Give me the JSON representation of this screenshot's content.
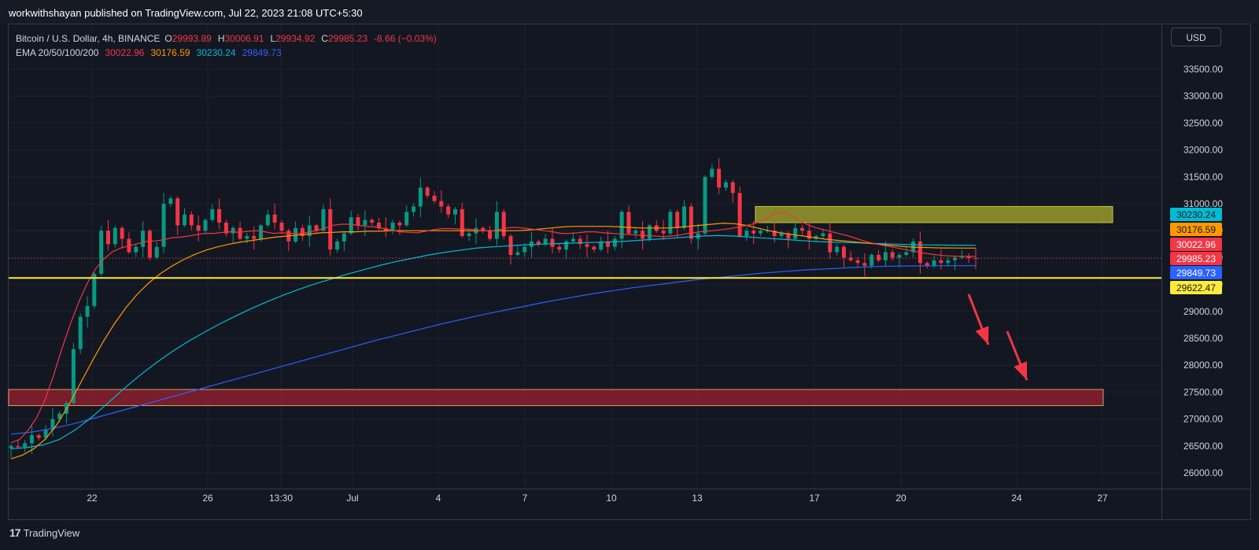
{
  "header": {
    "publisher_line": "workwithshayan published on TradingView.com, Jul 22, 2023 21:08 UTC+5:30"
  },
  "legend": {
    "symbol": "Bitcoin / U.S. Dollar, 4h, BINANCE",
    "o_label": "O",
    "o_value": "29993.89",
    "h_label": "H",
    "h_value": "30006.91",
    "l_label": "L",
    "l_value": "29934.92",
    "c_label": "C",
    "c_value": "29985.23",
    "change": "-8.66 (−0.03%)",
    "ema_label": "EMA 20/50/100/200",
    "ema20": "30022.96",
    "ema50": "30176.59",
    "ema100": "30230.24",
    "ema200": "29849.73"
  },
  "currency": "USD",
  "footer": {
    "logo_mark": "17",
    "logo_text": "TradingView"
  },
  "colors": {
    "background": "#131722",
    "grid": "#1e222d",
    "up": "#089981",
    "down": "#f23645",
    "ema20": "#f23645",
    "ema50": "#ff9800",
    "ema100": "#00bcd4",
    "ema200": "#2962ff",
    "support_line": "#ffeb3b",
    "resistance_zone": "#9a9a2a",
    "target_zone": "#8b1f2e",
    "arrow": "#f23645"
  },
  "chart_data": {
    "type": "candlestick",
    "symbol": "Bitcoin / U.S. Dollar",
    "interval": "4h",
    "exchange": "BINANCE",
    "x_ticks": [
      "22",
      "26",
      "13:30",
      "Jul",
      "4",
      "7",
      "10",
      "13",
      "17",
      "20",
      "24",
      "27"
    ],
    "y_ticks": [
      33500,
      33000,
      32500,
      32000,
      31500,
      31000,
      30500,
      30000,
      29500,
      29000,
      28500,
      28000,
      27500,
      27000,
      26500,
      26000
    ],
    "ylim": [
      25600,
      34300
    ],
    "grid": true,
    "price_labels": [
      {
        "series": "ema100",
        "value": 30230.24
      },
      {
        "series": "ema50",
        "value": 30176.59
      },
      {
        "series": "ema20",
        "value": 30022.96
      },
      {
        "series": "last",
        "value": 29985.23
      },
      {
        "series": "ema200",
        "value": 29849.73
      },
      {
        "series": "support",
        "value": 29622.47
      }
    ],
    "last_close": 29985.23,
    "horizontal_line": {
      "value": 29622.47
    },
    "zones": [
      {
        "type": "resistance",
        "from": 30650,
        "to": 30950
      },
      {
        "type": "target",
        "from": 27250,
        "to": 27550
      }
    ],
    "closes": [
      26500,
      26480,
      26550,
      26700,
      26650,
      26800,
      27000,
      27100,
      27300,
      28300,
      28900,
      29100,
      29700,
      30500,
      30250,
      30550,
      30350,
      30100,
      30200,
      30500,
      30000,
      30200,
      31000,
      31100,
      30600,
      30800,
      30600,
      30500,
      30700,
      30900,
      30650,
      30450,
      30550,
      30350,
      30400,
      30350,
      30600,
      30800,
      30650,
      30500,
      30300,
      30550,
      30400,
      30600,
      30500,
      30900,
      30150,
      30300,
      30450,
      30750,
      30600,
      30700,
      30650,
      30550,
      30500,
      30650,
      30600,
      30850,
      30950,
      31300,
      31150,
      31050,
      30950,
      30800,
      30900,
      30400,
      30450,
      30550,
      30500,
      30350,
      30850,
      30400,
      30050,
      30100,
      30200,
      30300,
      30250,
      30350,
      30200,
      30150,
      30300,
      30350,
      30250,
      30200,
      30150,
      30300,
      30200,
      30350,
      30850,
      30450,
      30500,
      30350,
      30600,
      30500,
      30450,
      30850,
      30550,
      30950,
      30350,
      30450,
      31500,
      31650,
      31300,
      31400,
      31200,
      30400,
      30500,
      30450,
      30500,
      30500,
      30400,
      30450,
      30350,
      30550,
      30500,
      30350,
      30400,
      30450,
      30100,
      30200,
      30000,
      29950,
      29900,
      29850,
      30050,
      29950,
      30100,
      30000,
      30050,
      30100,
      30300,
      29900,
      29850,
      29950,
      29900,
      29950,
      30000,
      30020,
      29990,
      29985
    ],
    "ema20": [
      26560,
      26620,
      26790,
      27020,
      27350,
      27800,
      28300,
      28760,
      29170,
      29520,
      29790,
      29980,
      30110,
      30180,
      30220,
      30260,
      30300,
      30310,
      30330,
      30370,
      30380,
      30400,
      30430,
      30450,
      30450,
      30470,
      30480,
      30470,
      30490,
      30500,
      30480,
      30450,
      30460,
      30450,
      30450,
      30470,
      30500,
      30540,
      30600,
      30620,
      30620,
      30600,
      30580,
      30570,
      30540,
      30510,
      30480,
      30470,
      30460,
      30490,
      30520,
      30540,
      30540,
      30530,
      30530,
      30510,
      30500,
      30500,
      30530,
      30560,
      30560,
      30540,
      30520,
      30500,
      30480,
      30450,
      30450,
      30460,
      30480,
      30480,
      30460,
      30450,
      30440,
      30430,
      30420,
      30410,
      30400,
      30390,
      30400,
      30420,
      30450,
      30470,
      30490,
      30500,
      30520,
      30540,
      30570,
      30600,
      30640,
      30700,
      30800,
      30850,
      30800,
      30700,
      30620,
      30560,
      30520,
      30480,
      30440,
      30400,
      30350,
      30300,
      30260,
      30230,
      30200,
      30170,
      30140,
      30110,
      30080,
      30060,
      30040,
      30030,
      30025,
      30023,
      30022
    ],
    "ema50": [
      26260,
      26330,
      26450,
      26630,
      26900,
      27250,
      27650,
      28050,
      28430,
      28770,
      29070,
      29320,
      29530,
      29700,
      29840,
      29960,
      30060,
      30140,
      30200,
      30250,
      30290,
      30320,
      30350,
      30380,
      30400,
      30420,
      30440,
      30460,
      30470,
      30480,
      30480,
      30490,
      30490,
      30500,
      30500,
      30500,
      30500,
      30500,
      30500,
      30500,
      30500,
      30500,
      30500,
      30500,
      30500,
      30510,
      30530,
      30550,
      30570,
      30580,
      30580,
      30580,
      30580,
      30570,
      30560,
      30550,
      30550,
      30550,
      30560,
      30580,
      30600,
      30620,
      30640,
      30630,
      30600,
      30550,
      30500,
      30460,
      30430,
      30400,
      30370,
      30340,
      30320,
      30300,
      30280,
      30260,
      30240,
      30220,
      30200,
      30190,
      30185,
      30180,
      30178,
      30177,
      30177
    ],
    "ema100": [
      26450,
      26470,
      26520,
      26620,
      26800,
      27030,
      27290,
      27560,
      27810,
      28040,
      28250,
      28440,
      28610,
      28770,
      28920,
      29060,
      29190,
      29310,
      29420,
      29520,
      29610,
      29700,
      29780,
      29860,
      29930,
      29990,
      30050,
      30100,
      30140,
      30180,
      30200,
      30220,
      30240,
      30250,
      30260,
      30270,
      30280,
      30290,
      30300,
      30320,
      30340,
      30360,
      30380,
      30400,
      30410,
      30400,
      30380,
      30360,
      30340,
      30320,
      30300,
      30290,
      30280,
      30270,
      30260,
      30250,
      30240,
      30235,
      30232,
      30231,
      30230
    ],
    "ema200": [
      26720,
      26760,
      26830,
      26920,
      27030,
      27140,
      27250,
      27360,
      27470,
      27580,
      27690,
      27800,
      27910,
      28020,
      28130,
      28240,
      28350,
      28460,
      28560,
      28660,
      28760,
      28850,
      28940,
      29020,
      29100,
      29180,
      29250,
      29320,
      29380,
      29440,
      29490,
      29540,
      29590,
      29630,
      29670,
      29710,
      29740,
      29770,
      29790,
      29810,
      29830,
      29840,
      29845,
      29848,
      29849,
      29850
    ]
  }
}
